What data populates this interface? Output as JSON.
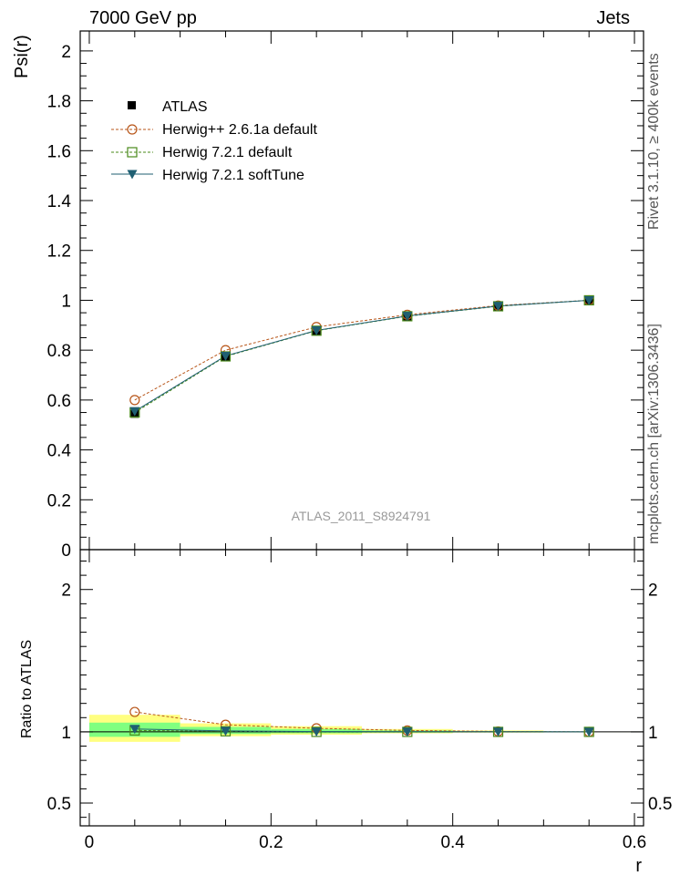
{
  "header": {
    "left": "7000 GeV pp",
    "right": "Jets"
  },
  "side_labels": {
    "rivet": "Rivet 3.1.10, ≥ 400k events",
    "mcplots": "mcplots.cern.ch [arXiv:1306.3436]"
  },
  "watermark": "ATLAS_2011_S8924791",
  "colors": {
    "atlas": "#000000",
    "herwigpp": "#b8561a",
    "herwig721_default": "#4a8a1a",
    "herwig721_softtune": "#1f5f72",
    "band_yellow": "#ffff80",
    "band_green": "#80ff80"
  },
  "chart_data": [
    {
      "type": "scatter",
      "panel": "main",
      "ylabel": "Psi(r)",
      "xlim": [
        -0.01,
        0.61
      ],
      "ylim": [
        0,
        2.08
      ],
      "y_ticks": [
        0,
        0.2,
        0.4,
        0.6,
        0.8,
        1,
        1.2,
        1.4,
        1.6,
        1.8,
        2
      ],
      "y_tick_labels": [
        "0",
        "0.2",
        "0.4",
        "0.6",
        "0.8",
        "1",
        "1.2",
        "1.4",
        "1.6",
        "1.8",
        "2"
      ],
      "legend_position": "top-left",
      "x": [
        0.05,
        0.15,
        0.25,
        0.35,
        0.45,
        0.55
      ],
      "series": [
        {
          "name": "ATLAS",
          "style": "data",
          "values": [
            0.545,
            0.772,
            0.877,
            0.935,
            0.976,
            1.0
          ]
        },
        {
          "name": "Herwig++ 2.6.1a default",
          "style": "circle",
          "values": [
            0.6,
            0.8,
            0.893,
            0.942,
            0.979,
            1.0
          ]
        },
        {
          "name": "Herwig 7.2.1 default",
          "style": "square",
          "values": [
            0.55,
            0.775,
            0.878,
            0.936,
            0.976,
            1.0
          ]
        },
        {
          "name": "Herwig 7.2.1 softTune",
          "style": "triangle",
          "values": [
            0.555,
            0.777,
            0.879,
            0.937,
            0.977,
            1.0
          ]
        }
      ]
    },
    {
      "type": "scatter",
      "panel": "ratio",
      "xlabel": "r",
      "ylabel": "Ratio to ATLAS",
      "xlim": [
        -0.01,
        0.61
      ],
      "ylim": [
        0.34,
        2.28
      ],
      "x_ticks": [
        0,
        0.2,
        0.4,
        0.6
      ],
      "x_tick_labels": [
        "0",
        "0.2",
        "0.4",
        "0.6"
      ],
      "y_ticks": [
        0.5,
        1,
        2
      ],
      "y_tick_labels": [
        "0.5",
        "1",
        "2"
      ],
      "x": [
        0.05,
        0.15,
        0.25,
        0.35,
        0.45,
        0.55
      ],
      "uncertainty_bands": {
        "bins": [
          [
            0.0,
            0.1
          ],
          [
            0.1,
            0.2
          ],
          [
            0.2,
            0.3
          ],
          [
            0.3,
            0.4
          ],
          [
            0.4,
            0.5
          ],
          [
            0.5,
            0.6
          ]
        ],
        "yellow": [
          [
            0.93,
            1.12
          ],
          [
            0.97,
            1.06
          ],
          [
            0.98,
            1.04
          ],
          [
            0.99,
            1.02
          ],
          [
            0.995,
            1.01
          ],
          [
            0.999,
            1.001
          ]
        ],
        "green": [
          [
            0.965,
            1.065
          ],
          [
            0.985,
            1.035
          ],
          [
            0.99,
            1.02
          ],
          [
            0.995,
            1.01
          ],
          [
            0.998,
            1.005
          ],
          [
            0.999,
            1.001
          ]
        ]
      },
      "series": [
        {
          "name": "Herwig++ 2.6.1a default",
          "style": "circle",
          "values": [
            1.14,
            1.05,
            1.025,
            1.01,
            1.003,
            1.0
          ]
        },
        {
          "name": "Herwig 7.2.1 default",
          "style": "square",
          "values": [
            1.01,
            1.004,
            1.0,
            1.0,
            1.0,
            1.0
          ]
        },
        {
          "name": "Herwig 7.2.1 softTune",
          "style": "triangle",
          "values": [
            1.02,
            1.007,
            1.002,
            1.001,
            1.001,
            1.0
          ]
        }
      ]
    }
  ]
}
